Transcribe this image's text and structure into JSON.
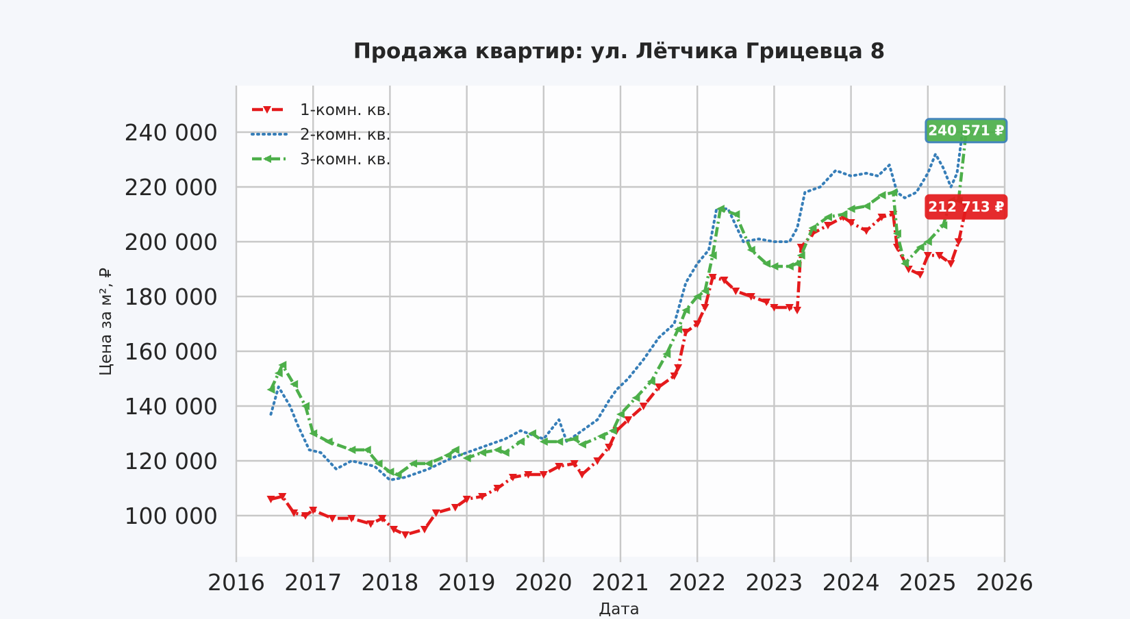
{
  "chart_data": {
    "type": "line",
    "title": "Продажа квартир: ул. Лётчика Грицевца 8",
    "xlabel": "Дата",
    "ylabel": "Цена за м², ₽",
    "xlim": [
      2016,
      2026
    ],
    "ylim": [
      85000,
      257000
    ],
    "x_ticks": [
      "2016",
      "2017",
      "2018",
      "2019",
      "2020",
      "2021",
      "2022",
      "2023",
      "2024",
      "2025",
      "2026"
    ],
    "y_ticks": [
      {
        "value": 100000,
        "label": "100 000"
      },
      {
        "value": 120000,
        "label": "120 000"
      },
      {
        "value": 140000,
        "label": "140 000"
      },
      {
        "value": 160000,
        "label": "160 000"
      },
      {
        "value": 180000,
        "label": "180 000"
      },
      {
        "value": 200000,
        "label": "200 000"
      },
      {
        "value": 220000,
        "label": "220 000"
      },
      {
        "value": 240000,
        "label": "240 000"
      }
    ],
    "grid": true,
    "legend_position": "top-left",
    "series": [
      {
        "name": "1-комн. кв.",
        "color": "#e41a1c",
        "style": "dash-dot with down-triangle markers",
        "x": [
          2016.45,
          2016.6,
          2016.75,
          2016.9,
          2017.0,
          2017.25,
          2017.5,
          2017.75,
          2017.9,
          2018.05,
          2018.2,
          2018.45,
          2018.6,
          2018.85,
          2019.0,
          2019.2,
          2019.4,
          2019.6,
          2019.8,
          2020.0,
          2020.2,
          2020.4,
          2020.5,
          2020.7,
          2020.85,
          2020.95,
          2021.1,
          2021.3,
          2021.5,
          2021.7,
          2021.75,
          2021.85,
          2022.0,
          2022.1,
          2022.2,
          2022.35,
          2022.5,
          2022.7,
          2022.9,
          2023.0,
          2023.2,
          2023.3,
          2023.35,
          2023.5,
          2023.7,
          2023.9,
          2024.0,
          2024.2,
          2024.4,
          2024.55,
          2024.6,
          2024.75,
          2024.9,
          2025.0,
          2025.15,
          2025.3,
          2025.4,
          2025.5
        ],
        "values": [
          106000,
          107000,
          101000,
          100000,
          102000,
          99000,
          99000,
          97000,
          99000,
          95000,
          93000,
          95000,
          101000,
          103000,
          106000,
          107000,
          110000,
          114000,
          115000,
          115000,
          118000,
          119000,
          115000,
          120000,
          125000,
          131000,
          135000,
          140000,
          147000,
          151000,
          154000,
          167000,
          170000,
          176000,
          187000,
          186000,
          182000,
          180000,
          178000,
          176000,
          176000,
          175000,
          198000,
          203000,
          206000,
          209000,
          207000,
          204000,
          209000,
          210000,
          198000,
          190000,
          188000,
          195000,
          195000,
          192000,
          200000,
          212713
        ]
      },
      {
        "name": "2-комн. кв.",
        "color": "#377eb8",
        "style": "dotted",
        "x": [
          2016.45,
          2016.55,
          2016.7,
          2016.8,
          2016.95,
          2017.1,
          2017.3,
          2017.5,
          2017.8,
          2018.0,
          2018.2,
          2018.5,
          2018.8,
          2019.0,
          2019.2,
          2019.5,
          2019.7,
          2020.0,
          2020.2,
          2020.3,
          2020.5,
          2020.7,
          2020.85,
          2020.95,
          2021.1,
          2021.3,
          2021.5,
          2021.7,
          2021.85,
          2022.0,
          2022.15,
          2022.25,
          2022.4,
          2022.6,
          2022.8,
          2023.0,
          2023.2,
          2023.3,
          2023.4,
          2023.6,
          2023.8,
          2024.0,
          2024.2,
          2024.35,
          2024.5,
          2024.6,
          2024.7,
          2024.85,
          2025.0,
          2025.1,
          2025.2,
          2025.3,
          2025.38,
          2025.45,
          2025.5
        ],
        "values": [
          137000,
          147000,
          140000,
          133000,
          124000,
          123000,
          117000,
          120000,
          118000,
          113000,
          114000,
          117000,
          121000,
          123000,
          125000,
          128000,
          131000,
          128000,
          135000,
          127000,
          131000,
          135000,
          142000,
          146000,
          150000,
          157000,
          165000,
          170000,
          185000,
          192000,
          197000,
          212000,
          212000,
          200000,
          201000,
          200000,
          200000,
          205000,
          218000,
          220000,
          226000,
          224000,
          225000,
          224000,
          228000,
          218000,
          216000,
          218000,
          225000,
          232000,
          227000,
          220000,
          225000,
          240000,
          240571
        ]
      },
      {
        "name": "3-комн. кв.",
        "color": "#4daf4a",
        "style": "dash-dot with left-triangle markers",
        "x": [
          2016.45,
          2016.55,
          2016.6,
          2016.75,
          2016.9,
          2017.0,
          2017.2,
          2017.5,
          2017.7,
          2017.85,
          2018.0,
          2018.1,
          2018.3,
          2018.5,
          2018.75,
          2018.85,
          2019.0,
          2019.2,
          2019.4,
          2019.5,
          2019.7,
          2019.85,
          2020.0,
          2020.2,
          2020.4,
          2020.5,
          2020.75,
          2020.9,
          2021.0,
          2021.2,
          2021.4,
          2021.6,
          2021.75,
          2021.85,
          2022.0,
          2022.1,
          2022.2,
          2022.3,
          2022.5,
          2022.7,
          2022.9,
          2023.0,
          2023.2,
          2023.3,
          2023.35,
          2023.5,
          2023.7,
          2023.9,
          2024.0,
          2024.2,
          2024.4,
          2024.55,
          2024.6,
          2024.7,
          2024.9,
          2025.0,
          2025.2,
          2025.3,
          2025.4,
          2025.5
        ],
        "values": [
          146000,
          152000,
          155000,
          148000,
          140000,
          130000,
          127000,
          124000,
          124000,
          119000,
          116000,
          115000,
          119000,
          119000,
          122000,
          124000,
          121000,
          123000,
          124000,
          123000,
          127000,
          130000,
          127000,
          127000,
          128000,
          126000,
          129000,
          131000,
          137000,
          143000,
          149000,
          159000,
          168000,
          175000,
          180000,
          182000,
          195000,
          212000,
          210000,
          197000,
          192000,
          191000,
          191000,
          192000,
          195000,
          205000,
          209000,
          210000,
          212000,
          213000,
          217000,
          218000,
          203000,
          192000,
          198000,
          200000,
          206000,
          215000,
          215000,
          240571
        ]
      }
    ],
    "annotations": [
      {
        "label": "240 571 ₽",
        "x": 2025.5,
        "value": 240571,
        "color": "#4daf4a",
        "border": "#377eb8"
      },
      {
        "label": "212 713 ₽",
        "x": 2025.5,
        "value": 212713,
        "color": "#e41a1c",
        "border": "#e41a1c"
      }
    ]
  }
}
